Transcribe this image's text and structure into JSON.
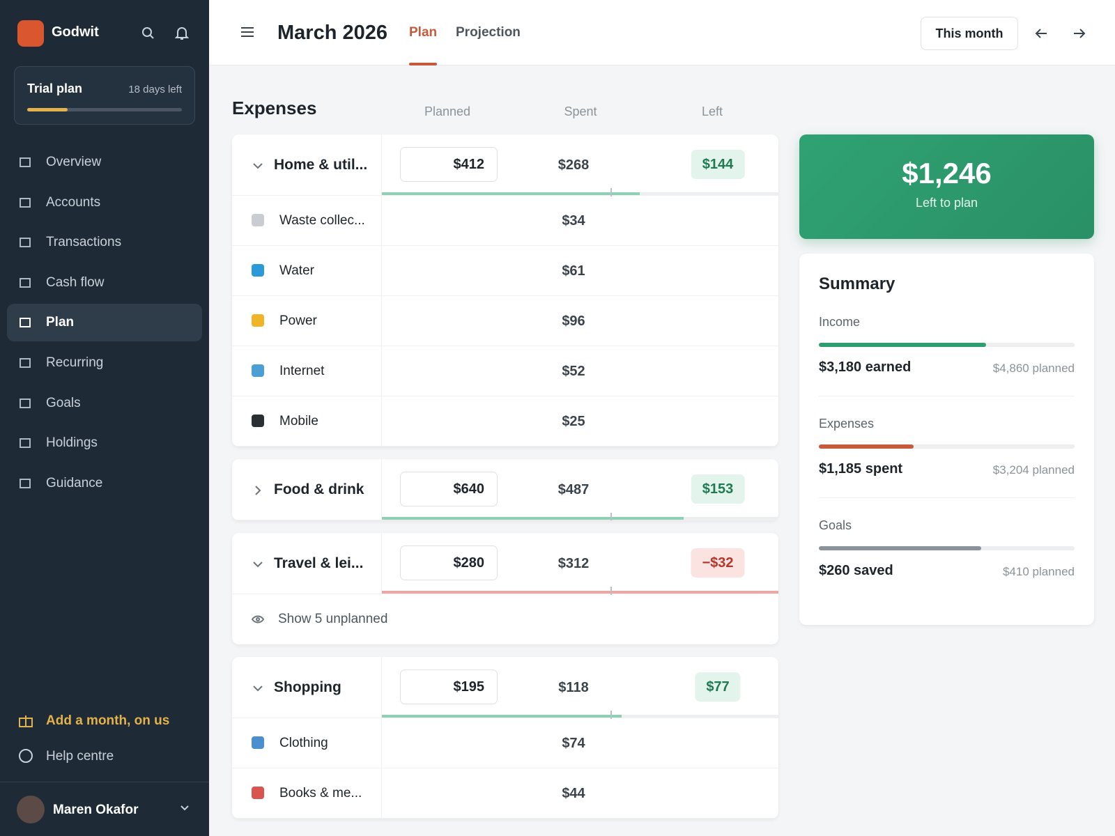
{
  "sidebar": {
    "brand": "Godwit",
    "trial": {
      "title": "Trial plan",
      "days": "18 days left"
    },
    "nav": [
      "Overview",
      "Accounts",
      "Transactions",
      "Cash flow",
      "Plan",
      "Recurring",
      "Goals",
      "Holdings",
      "Guidance"
    ],
    "active": 4,
    "promo": "Add a month, on us",
    "help": "Help centre",
    "user": "Maren Okafor"
  },
  "header": {
    "title": "March 2026",
    "tabs": [
      "Plan",
      "Projection"
    ],
    "button": "This month"
  },
  "expenses": {
    "heading": "Expenses",
    "columns": [
      "Planned",
      "Spent",
      "Left"
    ],
    "groups": [
      {
        "name": "Home & util...",
        "planned": "$412",
        "spent": "$268",
        "left": "$144",
        "items": [
          {
            "name": "Waste collec...",
            "spent": "$34"
          },
          {
            "name": "Water",
            "spent": "$61"
          },
          {
            "name": "Power",
            "spent": "$96"
          },
          {
            "name": "Internet",
            "spent": "$52"
          },
          {
            "name": "Mobile",
            "spent": "$25"
          }
        ]
      },
      {
        "name": "Food & drink",
        "planned": "$640",
        "spent": "$487",
        "left": "$153",
        "items": []
      },
      {
        "name": "Travel & lei...",
        "planned": "$280",
        "spent": "$312",
        "left": "−$32",
        "items": [],
        "footer": "Show 5 unplanned"
      },
      {
        "name": "Shopping",
        "planned": "$195",
        "spent": "$118",
        "left": "$77",
        "items": [
          {
            "name": "Clothing",
            "spent": "$74"
          },
          {
            "name": "Books & me...",
            "spent": "$44"
          }
        ]
      }
    ]
  },
  "left_to_plan": {
    "amount": "$1,246",
    "label": "Left to plan"
  },
  "summary": {
    "title": "Summary",
    "sections": [
      {
        "label": "Income",
        "value": "$3,180 earned",
        "planned": "$4,860 planned",
        "color": "#2e9e6e"
      },
      {
        "label": "Expenses",
        "value": "$1,185 spent",
        "planned": "$3,204 planned",
        "color": "#c65a3c"
      },
      {
        "label": "Goals",
        "value": "$260 saved",
        "planned": "$410 planned",
        "color": "#8a9399"
      }
    ]
  }
}
